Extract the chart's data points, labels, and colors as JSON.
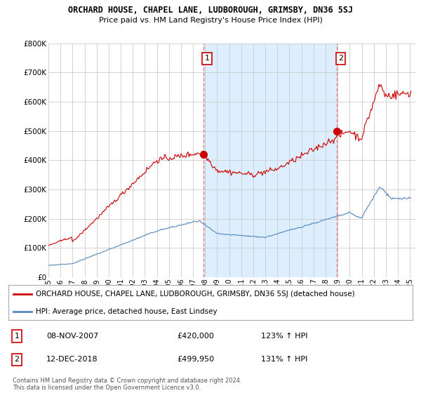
{
  "title": "ORCHARD HOUSE, CHAPEL LANE, LUDBOROUGH, GRIMSBY, DN36 5SJ",
  "subtitle": "Price paid vs. HM Land Registry's House Price Index (HPI)",
  "ylim": [
    0,
    800000
  ],
  "xlim_start": 1995.0,
  "xlim_end": 2025.5,
  "xtick_years": [
    1995,
    1996,
    1997,
    1998,
    1999,
    2000,
    2001,
    2002,
    2003,
    2004,
    2005,
    2006,
    2007,
    2008,
    2009,
    2010,
    2011,
    2012,
    2013,
    2014,
    2015,
    2016,
    2017,
    2018,
    2019,
    2020,
    2021,
    2022,
    2023,
    2024,
    2025
  ],
  "sale1_x": 2007.86,
  "sale1_y": 420000,
  "sale2_x": 2018.95,
  "sale2_y": 499950,
  "vline_color": "#e88080",
  "shade_color": "#ddeeff",
  "red_line_color": "#cc0000",
  "blue_line_color": "#5588bb",
  "grid_color": "#cccccc",
  "background_color": "#ffffff",
  "legend_label_red": "ORCHARD HOUSE, CHAPEL LANE, LUDBOROUGH, GRIMSBY, DN36 5SJ (detached house)",
  "legend_label_blue": "HPI: Average price, detached house, East Lindsey",
  "table_row1": [
    "1",
    "08-NOV-2007",
    "£420,000",
    "123% ↑ HPI"
  ],
  "table_row2": [
    "2",
    "12-DEC-2018",
    "£499,950",
    "131% ↑ HPI"
  ],
  "footer": "Contains HM Land Registry data © Crown copyright and database right 2024.\nThis data is licensed under the Open Government Licence v3.0."
}
